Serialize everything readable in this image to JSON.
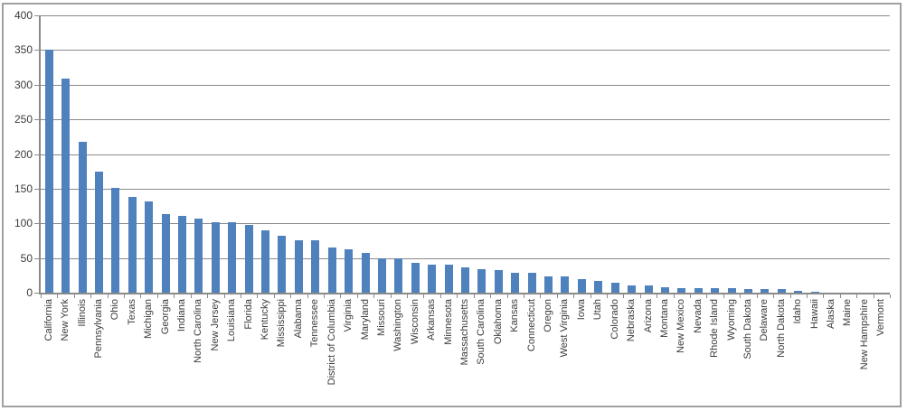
{
  "chart_data": {
    "type": "bar",
    "title": "",
    "xlabel": "",
    "ylabel": "",
    "ylim": [
      0,
      400
    ],
    "ytick_step": 50,
    "yticks": [
      0,
      50,
      100,
      150,
      200,
      250,
      300,
      350,
      400
    ],
    "grid": true,
    "legend": "none",
    "categories": [
      "California",
      "New York",
      "Illinois",
      "Pennsylvania",
      "Ohio",
      "Texas",
      "Michigan",
      "Georgia",
      "Indiana",
      "North Carolina",
      "New Jersey",
      "Louisiana",
      "Florida",
      "Kentucky",
      "Mississippi",
      "Alabama",
      "Tennessee",
      "District of Columbia",
      "Virginia",
      "Maryland",
      "Missouri",
      "Washington",
      "Wisconsin",
      "Arkansas",
      "Minnesota",
      "Massachusetts",
      "South Carolina",
      "Oklahoma",
      "Kansas",
      "Connecticut",
      "Oregon",
      "West Virginia",
      "Iowa",
      "Utah",
      "Colorado",
      "Nebraska",
      "Arizona",
      "Montana",
      "New Mexico",
      "Nevada",
      "Rhode Island",
      "Wyoming",
      "South Dakota",
      "Delaware",
      "North Dakota",
      "Idaho",
      "Hawaii",
      "Alaska",
      "Maine",
      "New Hampshire",
      "Vermont"
    ],
    "values": [
      351,
      309,
      217,
      175,
      151,
      138,
      132,
      113,
      111,
      107,
      102,
      102,
      98,
      90,
      82,
      76,
      75,
      65,
      62,
      57,
      50,
      49,
      43,
      41,
      40,
      37,
      34,
      33,
      29,
      29,
      23,
      23,
      19,
      17,
      14,
      11,
      10,
      8,
      7,
      7,
      7,
      6,
      5,
      5,
      5,
      3,
      1,
      0,
      0,
      0,
      0
    ]
  },
  "colors": {
    "bar": "#4f81bd",
    "gridline": "#8a8a8a",
    "axis": "#8a8a8a",
    "text": "#3b3b3b",
    "chart_border": "#a0a0a0",
    "background": "#ffffff"
  }
}
